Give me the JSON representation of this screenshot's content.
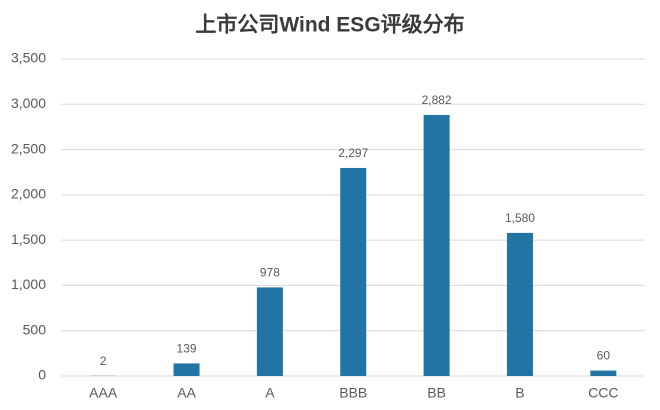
{
  "chart_data": {
    "type": "bar",
    "title": "上市公司Wind ESG评级分布",
    "categories": [
      "AAA",
      "AA",
      "A",
      "BBB",
      "BB",
      "B",
      "CCC"
    ],
    "values": [
      2,
      139,
      978,
      2297,
      2882,
      1580,
      60
    ],
    "value_labels": [
      "2",
      "139",
      "978",
      "2,297",
      "2,882",
      "1,580",
      "60"
    ],
    "color": "#2274a5",
    "ylim": [
      0,
      3500
    ],
    "yticks": [
      0,
      500,
      {
        "value": 1000,
        "label": "1,000"
      },
      {
        "value": 1500,
        "label": "1,500"
      },
      {
        "value": 2000,
        "label": "2,000"
      },
      {
        "value": 2500,
        "label": "2,500"
      },
      {
        "value": 3000,
        "label": "3,000"
      },
      {
        "value": 3500,
        "label": "3,500"
      }
    ],
    "grid": true
  }
}
